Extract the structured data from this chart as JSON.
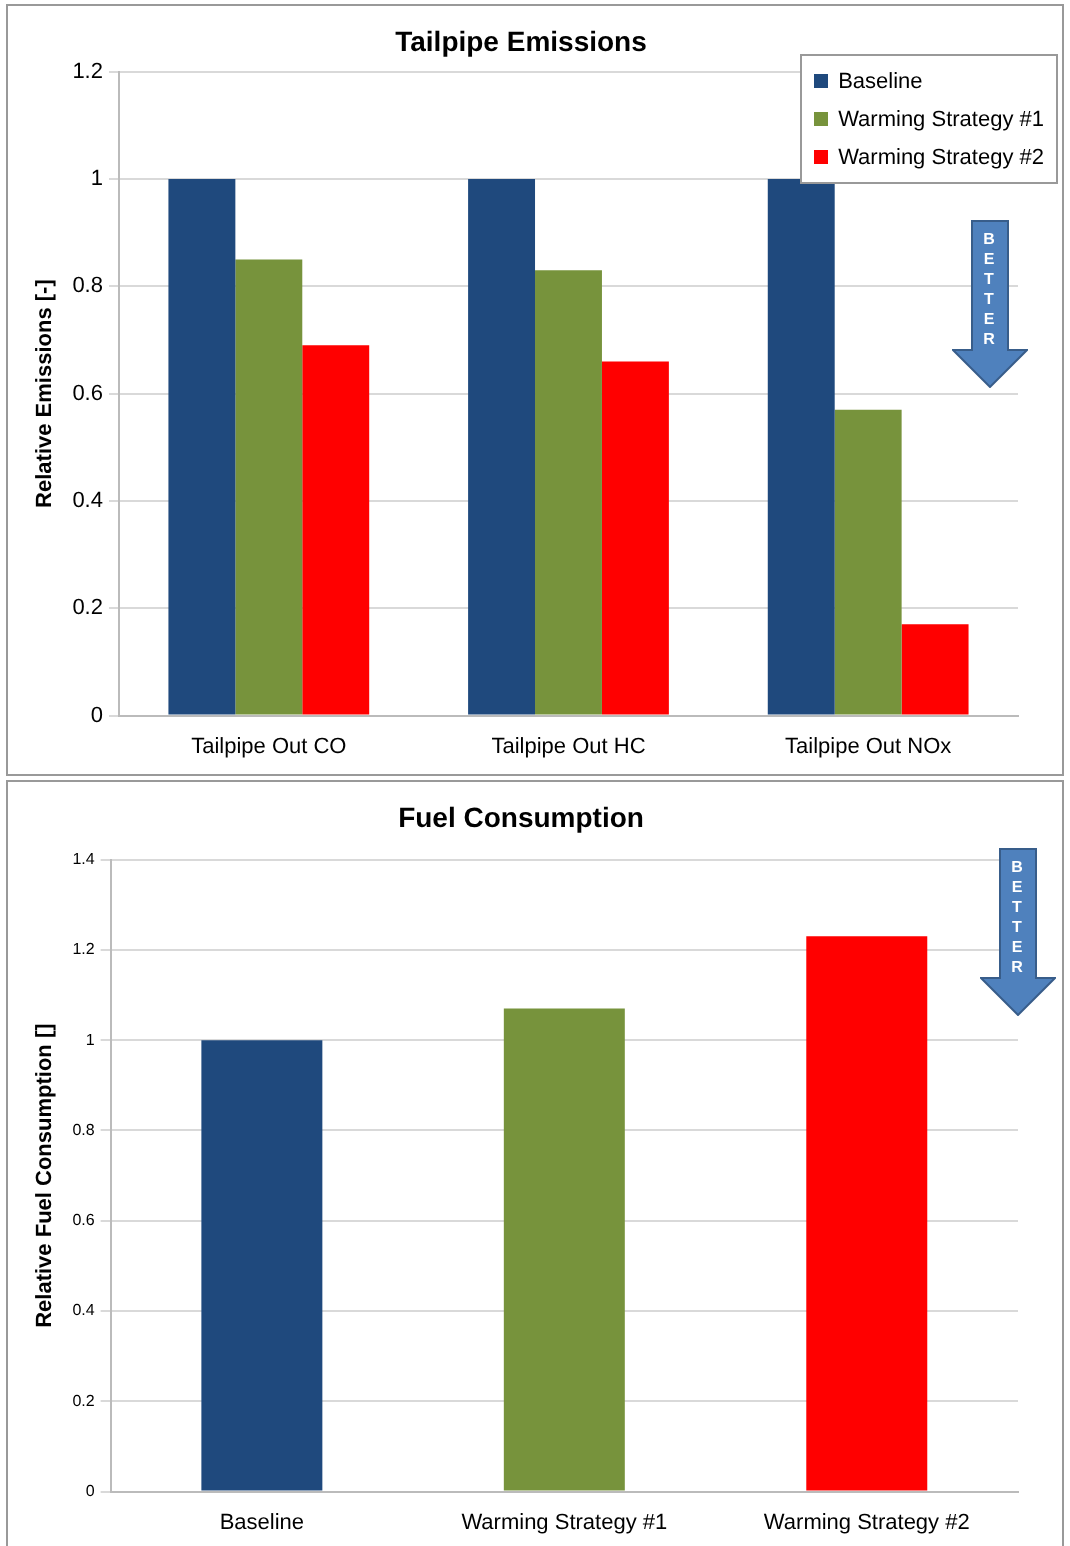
{
  "chart_data": [
    {
      "type": "bar",
      "title": "Tailpipe Emissions",
      "ylabel": "Relative Emissions [-]",
      "categories": [
        "Tailpipe Out CO",
        "Tailpipe Out HC",
        "Tailpipe Out NOx"
      ],
      "series": [
        {
          "name": "Baseline",
          "color": "#1f497d",
          "values": [
            1,
            1,
            1
          ]
        },
        {
          "name": "Warming Strategy #1",
          "color": "#77933c",
          "values": [
            0.85,
            0.83,
            0.57
          ]
        },
        {
          "name": "Warming Strategy #2",
          "color": "#ff0000",
          "values": [
            0.69,
            0.66,
            0.17
          ]
        }
      ],
      "ylim": [
        0,
        1.2
      ],
      "yticks": [
        0,
        0.2,
        0.4,
        0.6,
        0.8,
        1,
        1.2
      ],
      "grid": "y",
      "legend": "top right",
      "annotations": [
        "BETTER"
      ]
    },
    {
      "type": "bar",
      "title": "Fuel Consumption",
      "ylabel": "Relative Fuel Consumption []",
      "categories": [
        "Baseline",
        "Warming Strategy #1",
        "Warming Strategy #2"
      ],
      "values": [
        1,
        1.07,
        1.23
      ],
      "colors": [
        "#1f497d",
        "#77933c",
        "#ff0000"
      ],
      "ylim": [
        0,
        1.4
      ],
      "yticks": [
        0,
        0.2,
        0.4,
        0.6,
        0.8,
        1,
        1.2,
        1.4
      ],
      "grid": "y",
      "annotations": [
        "BETTER"
      ]
    }
  ]
}
